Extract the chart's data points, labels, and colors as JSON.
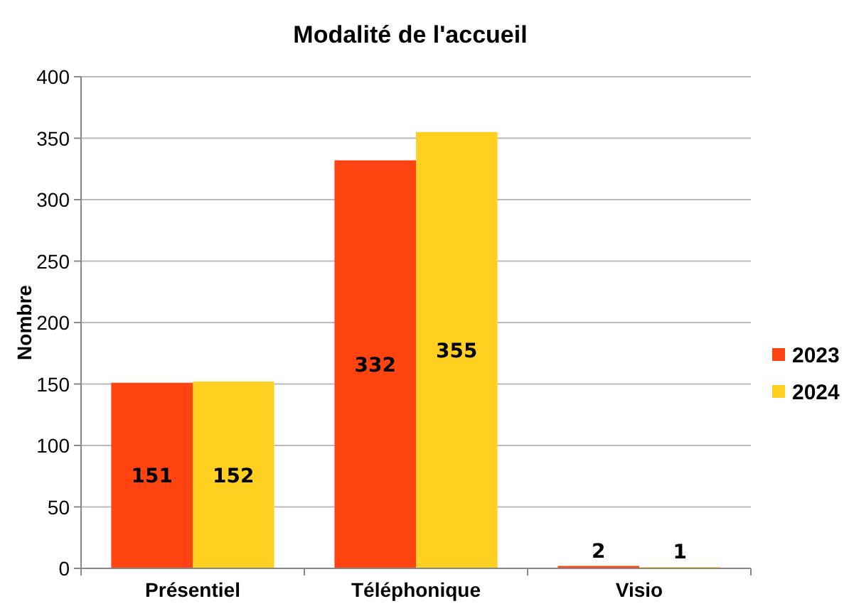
{
  "chart_data": {
    "type": "bar",
    "title": "Modalité de l'accueil",
    "ylabel": "Nombre",
    "categories": [
      "Présentiel",
      "Téléphonique",
      "Visio"
    ],
    "series": [
      {
        "name": "2023",
        "color": "#ff4411",
        "values": [
          151,
          332,
          2
        ]
      },
      {
        "name": "2024",
        "color": "#ffd020",
        "values": [
          152,
          355,
          1
        ]
      }
    ],
    "ylim": [
      0,
      400
    ],
    "yticks": [
      0,
      50,
      100,
      150,
      200,
      250,
      300,
      350,
      400
    ],
    "grid": "y",
    "legend": "right",
    "data_labels": true
  }
}
